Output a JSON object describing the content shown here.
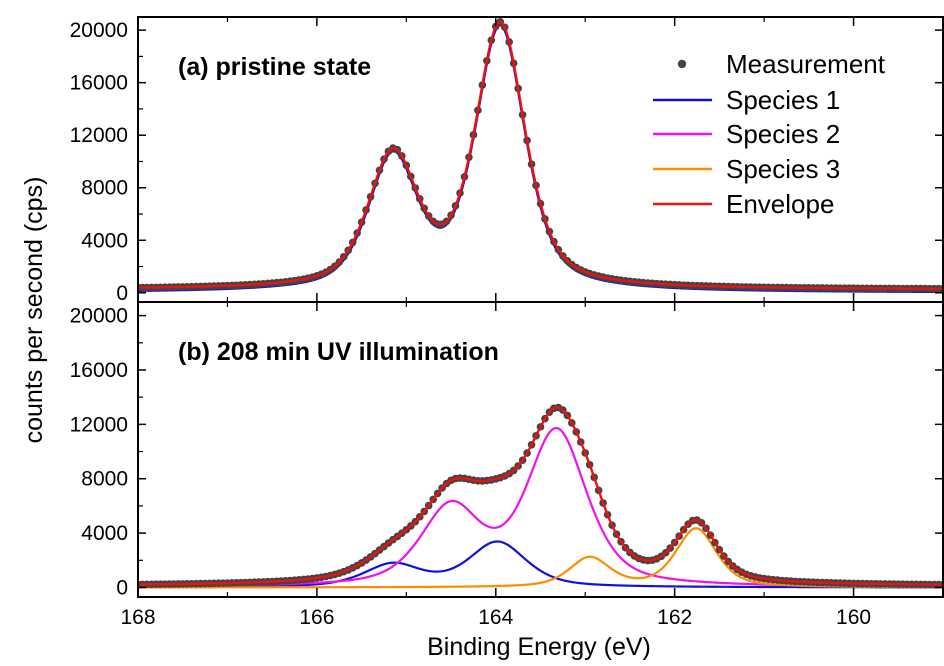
{
  "chart_data": [
    {
      "type": "line",
      "panel_label": "(a) pristine state",
      "xlabel": "Binding Energy (eV)",
      "ylabel": "counts per second (cps)",
      "xlim": [
        168,
        159
      ],
      "x_reversed": true,
      "ylim": [
        -700,
        21000
      ],
      "x_ticks": [
        "168",
        "166",
        "164",
        "162",
        "160"
      ],
      "y_ticks": [
        "0",
        "4000",
        "8000",
        "12000",
        "16000",
        "20000"
      ],
      "legend_position": "top-right",
      "legend": [
        "Measurement",
        "Species 1",
        "Species 2",
        "Species 3",
        "Envelope"
      ],
      "colors": {
        "Measurement": "#444444",
        "Species 1": "#1010dd",
        "Species 2": "#f010f0",
        "Species 3": "#ff8c00",
        "Envelope": "#ee1111"
      },
      "baseline": 250,
      "components": {
        "Species 1": [
          {
            "center": 165.15,
            "height": 10000,
            "width": 0.33
          },
          {
            "center": 163.95,
            "height": 20000,
            "width": 0.33
          }
        ]
      },
      "series_names": [
        "Measurement",
        "Species 1",
        "Envelope"
      ]
    },
    {
      "type": "line",
      "panel_label": "(b) 208 min UV illumination",
      "xlabel": "Binding Energy (eV)",
      "ylabel": "counts per second (cps)",
      "xlim": [
        168,
        159
      ],
      "x_reversed": true,
      "ylim": [
        -700,
        21000
      ],
      "x_ticks": [
        "168",
        "166",
        "164",
        "162",
        "160"
      ],
      "y_ticks": [
        "0",
        "4000",
        "8000",
        "12000",
        "16000",
        "20000"
      ],
      "baseline": 100,
      "components": {
        "Species 1": [
          {
            "center": 165.15,
            "height": 1650,
            "width": 0.38
          },
          {
            "center": 163.98,
            "height": 3300,
            "width": 0.38
          }
        ],
        "Species 2": [
          {
            "center": 164.5,
            "height": 5700,
            "width": 0.4
          },
          {
            "center": 163.32,
            "height": 11400,
            "width": 0.4
          }
        ],
        "Species 3": [
          {
            "center": 162.95,
            "height": 2150,
            "width": 0.27
          },
          {
            "center": 161.76,
            "height": 4300,
            "width": 0.27
          }
        ]
      },
      "series_names": [
        "Measurement",
        "Species 1",
        "Species 2",
        "Species 3",
        "Envelope"
      ]
    }
  ]
}
